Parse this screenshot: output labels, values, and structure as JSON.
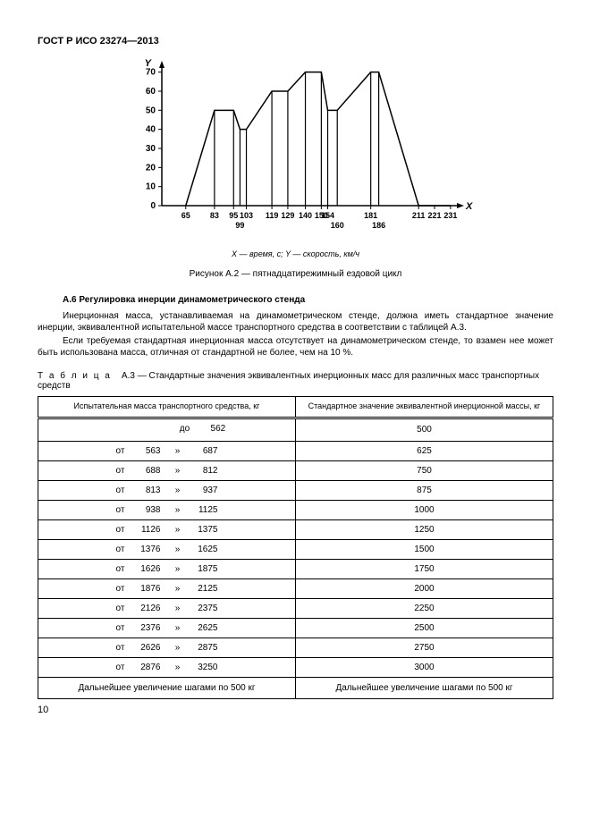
{
  "header": {
    "title": "ГОСТ Р ИСО 23274—2013"
  },
  "chart": {
    "type": "line",
    "y_label": "Y",
    "x_label": "X",
    "y_ticks": [
      0,
      10,
      20,
      30,
      40,
      50,
      60,
      70
    ],
    "x_ticks": [
      65,
      83,
      95,
      103,
      119,
      129,
      140,
      150,
      154,
      181,
      211,
      221,
      231
    ],
    "x_ticks_secondary": [
      99,
      160,
      186
    ],
    "points": [
      {
        "x": 65,
        "y": 0
      },
      {
        "x": 83,
        "y": 50
      },
      {
        "x": 95,
        "y": 50
      },
      {
        "x": 99,
        "y": 40
      },
      {
        "x": 103,
        "y": 40
      },
      {
        "x": 119,
        "y": 60
      },
      {
        "x": 129,
        "y": 60
      },
      {
        "x": 140,
        "y": 70
      },
      {
        "x": 150,
        "y": 70
      },
      {
        "x": 154,
        "y": 50
      },
      {
        "x": 160,
        "y": 50
      },
      {
        "x": 181,
        "y": 70
      },
      {
        "x": 186,
        "y": 70
      },
      {
        "x": 211,
        "y": 0
      },
      {
        "x": 221,
        "y": 0
      },
      {
        "x": 231,
        "y": 0
      }
    ],
    "verticals_at_x": [
      83,
      95,
      99,
      103,
      119,
      129,
      140,
      150,
      154,
      160,
      181,
      186
    ],
    "title_fontsize": 10,
    "axis_fontsize": 9,
    "font_weight": "bold",
    "line_color": "#000000",
    "line_width": 1.5,
    "tick_color": "#000000",
    "background_color": "#ffffff"
  },
  "axis_legend": "X — время, с; Y — скорость, км/ч",
  "fig_caption": "Рисунок А.2 — пятнадцатирежимный ездовой цикл",
  "section": {
    "num_title": "А.6 Регулировка инерции динамометрического стенда",
    "p1": "Инерционная масса, устанавливаемая на динамометрическом стенде, должна иметь стандартное значение инерции, эквивалентной испытательной массе транспортного средства в соответствии с таблицей А.3.",
    "p2": "Если требуемая стандартная инерционная масса отсутствует на динамометрическом стенде, то взамен нее может быть использована масса, отличная от стандартной не более, чем на 10 %."
  },
  "table": {
    "caption_lead": "Т а б л и ц а",
    "caption_rest": "А.3 — Стандартные значения эквивалентных инерционных масс для различных масс транспортных средств",
    "head_col1": "Испытательная масса транспортного средства, кг",
    "head_col2": "Стандартное значение эквивалентной инерционной массы, кг",
    "rows": [
      {
        "from": "",
        "sep": "до",
        "to": "562",
        "val": "500"
      },
      {
        "from": "563",
        "sep": "»",
        "to": "687",
        "val": "625",
        "pre": "от"
      },
      {
        "from": "688",
        "sep": "»",
        "to": "812",
        "val": "750",
        "pre": "от"
      },
      {
        "from": "813",
        "sep": "»",
        "to": "937",
        "val": "875",
        "pre": "от"
      },
      {
        "from": "938",
        "sep": "»",
        "to": "1125",
        "val": "1000",
        "pre": "от"
      },
      {
        "from": "1126",
        "sep": "»",
        "to": "1375",
        "val": "1250",
        "pre": "от"
      },
      {
        "from": "1376",
        "sep": "»",
        "to": "1625",
        "val": "1500",
        "pre": "от"
      },
      {
        "from": "1626",
        "sep": "»",
        "to": "1875",
        "val": "1750",
        "pre": "от"
      },
      {
        "from": "1876",
        "sep": "»",
        "to": "2125",
        "val": "2000",
        "pre": "от"
      },
      {
        "from": "2126",
        "sep": "»",
        "to": "2375",
        "val": "2250",
        "pre": "от"
      },
      {
        "from": "2376",
        "sep": "»",
        "to": "2625",
        "val": "2500",
        "pre": "от"
      },
      {
        "from": "2626",
        "sep": "»",
        "to": "2875",
        "val": "2750",
        "pre": "от"
      },
      {
        "from": "2876",
        "sep": "»",
        "to": "3250",
        "val": "3000",
        "pre": "от"
      }
    ],
    "foot_left": "Дальнейшее увеличение шагами по 500 кг",
    "foot_right": "Дальнейшее увеличение шагами по 500 кг"
  },
  "page_number": "10"
}
